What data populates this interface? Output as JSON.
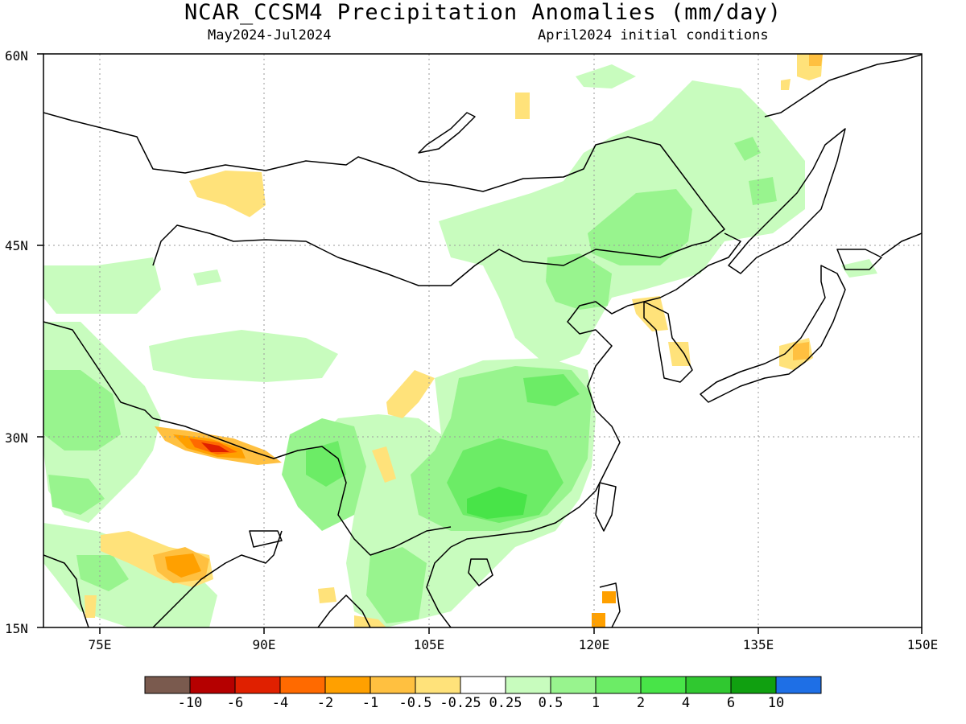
{
  "title": "NCAR_CCSM4 Precipitation Anomalies (mm/day)",
  "subtitle_left": "May2024-Jul2024",
  "subtitle_right": "April2024 initial conditions",
  "lat_labels": [
    "60N",
    "45N",
    "30N",
    "15N"
  ],
  "lon_labels": [
    "75E",
    "90E",
    "105E",
    "120E",
    "135E",
    "150E"
  ],
  "colorbar": {
    "colors": [
      "#7a5a4e",
      "#b50000",
      "#e02000",
      "#ff6a00",
      "#ffa000",
      "#ffc040",
      "#ffe27a",
      "#ffffff",
      "#c8fcbe",
      "#98f48e",
      "#6cec66",
      "#48e448",
      "#30c830",
      "#10a010",
      "#1e6fe6"
    ],
    "labels": [
      "-10",
      "-6",
      "-4",
      "-2",
      "-1",
      "-0.5",
      "-0.25",
      "0.25",
      "0.5",
      "1",
      "2",
      "4",
      "6",
      "10"
    ]
  },
  "map": {
    "extent": {
      "lon_min": 70,
      "lon_max": 150,
      "lat_min": 15,
      "lat_max": 60
    },
    "colors": {
      "l1": "#c8fcbe",
      "l2": "#98f48e",
      "l3": "#6cec66",
      "l4": "#48e448",
      "y1": "#ffe27a",
      "y2": "#ffc040",
      "o1": "#ffa000",
      "o2": "#ff6a00",
      "r1": "#e02000",
      "coast": "#000000"
    }
  }
}
